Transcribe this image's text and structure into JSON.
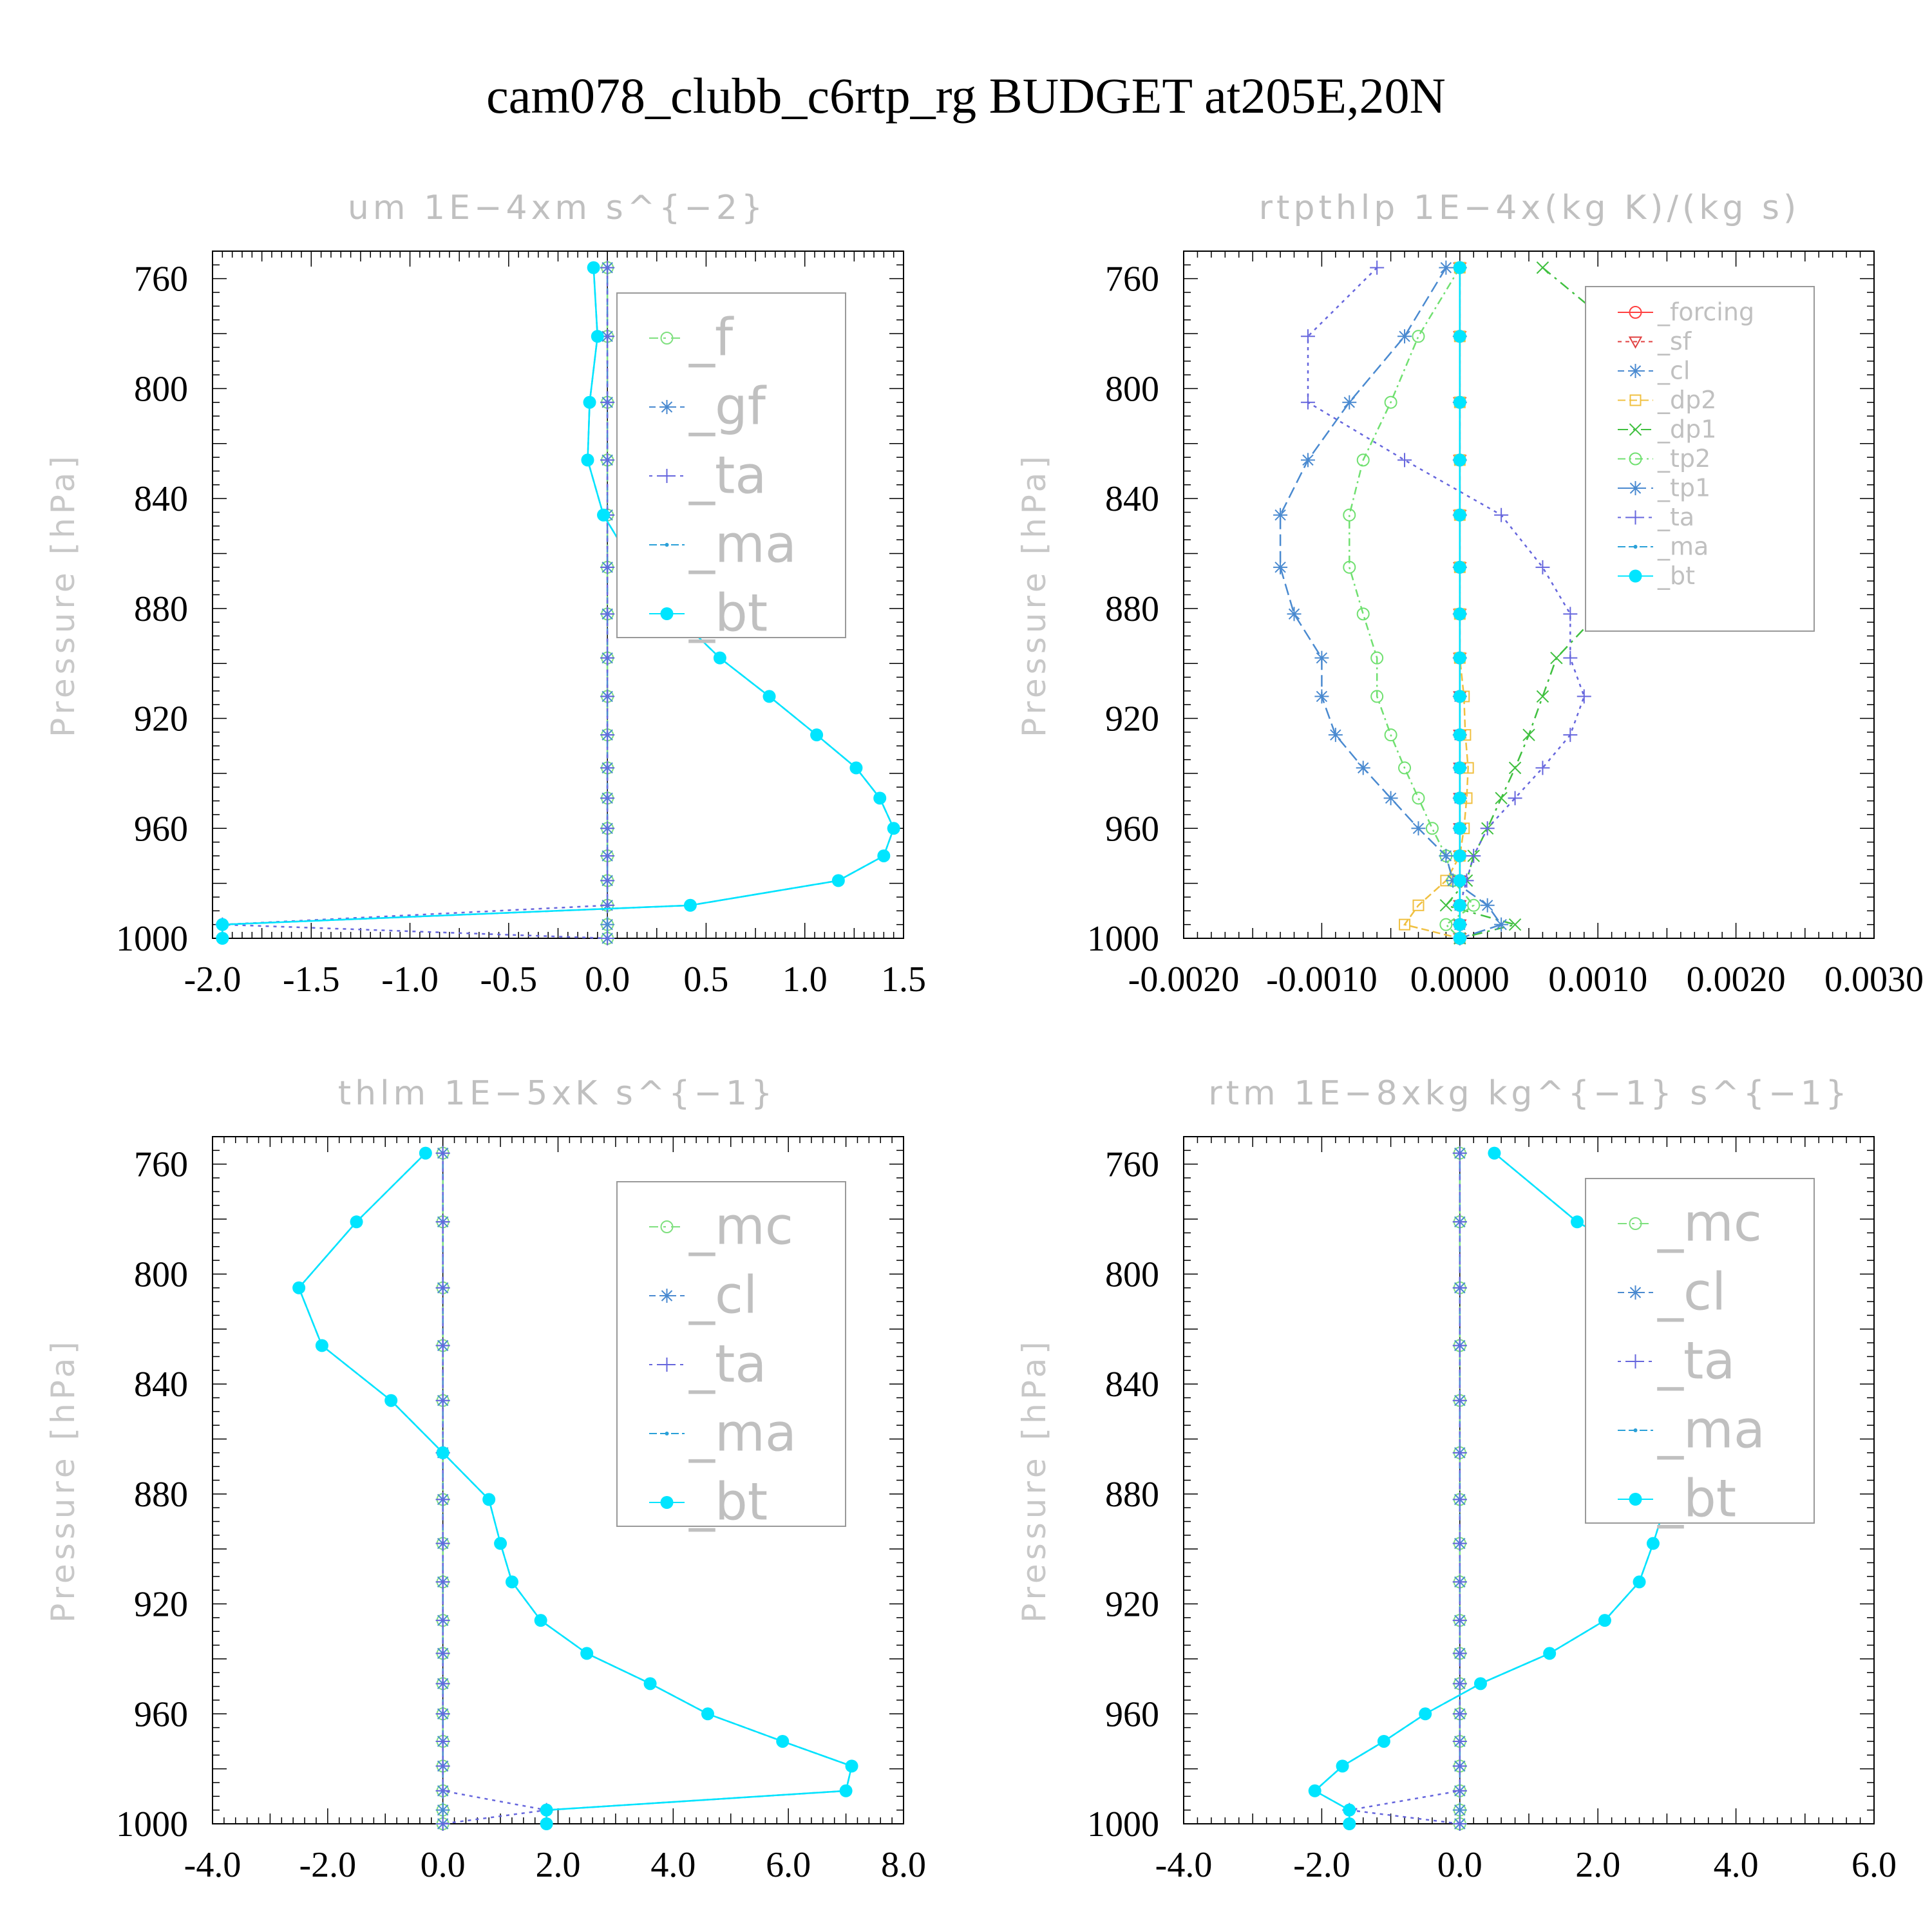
{
  "figure_title": "cam078_clubb_c6rtp_rg  BUDGET at205E,20N",
  "colors": {
    "_f": "#7fe07f",
    "_gf": "#4a8ad0",
    "_ta": "#6666dd",
    "_ma": "#2aa0d8",
    "_bt": "#00e5ff",
    "_mc": "#7fe07f",
    "_cl": "#4a8ad0",
    "_forcing": "#ff4040",
    "_sf": "#e04040",
    "_dp2": "#f0c040",
    "_dp1": "#40c040",
    "_tp2": "#70e070",
    "_tp1": "#4a8ad0"
  },
  "chart_data": [
    {
      "type": "line",
      "title": "um   1E−4xm s^{−2}",
      "ylabel": "Pressure [hPa]",
      "ylim": [
        1000,
        750
      ],
      "xlim": [
        -2.0,
        1.5
      ],
      "xticks": [
        "-2.0",
        "-1.5",
        "-1.0",
        "-0.5",
        "0.0",
        "0.5",
        "1.0",
        "1.5"
      ],
      "yticks": [
        "760",
        "800",
        "840",
        "880",
        "920",
        "960",
        "1000"
      ],
      "legend_position": "top-right",
      "pressure": [
        756,
        781,
        805,
        826,
        846,
        865,
        882,
        898,
        912,
        926,
        938,
        949,
        960,
        970,
        979,
        988,
        995,
        1000
      ],
      "series": [
        {
          "name": "_f",
          "values": [
            0,
            0,
            0,
            0,
            0,
            0,
            0,
            0,
            0,
            0,
            0,
            0,
            0,
            0,
            0,
            0,
            0,
            0
          ]
        },
        {
          "name": "_gf",
          "values": [
            0,
            0,
            0,
            0,
            0,
            0,
            0,
            0,
            0,
            0,
            0,
            0,
            0,
            0,
            0,
            0,
            0,
            0
          ]
        },
        {
          "name": "_ta",
          "values": [
            0,
            0,
            0,
            0,
            0,
            0,
            0,
            0,
            0,
            0,
            0,
            0,
            0,
            0,
            0,
            0,
            -1.95,
            0
          ]
        },
        {
          "name": "_ma",
          "values": [
            -0.07,
            -0.05,
            -0.09,
            -0.1,
            -0.02,
            0.14,
            0.34,
            0.57,
            0.82,
            1.06,
            1.26,
            1.38,
            1.45,
            1.4,
            1.17,
            0.42,
            -1.95,
            -1.95
          ]
        },
        {
          "name": "_bt",
          "values": [
            -0.07,
            -0.05,
            -0.09,
            -0.1,
            -0.02,
            0.14,
            0.34,
            0.57,
            0.82,
            1.06,
            1.26,
            1.38,
            1.45,
            1.4,
            1.17,
            0.42,
            -1.95,
            -1.95
          ]
        }
      ]
    },
    {
      "type": "line",
      "title": "rtpthlp   1E−4x(kg K)/(kg s)",
      "ylabel": "Pressure [hPa]",
      "ylim": [
        1000,
        750
      ],
      "xlim": [
        -0.002,
        0.003
      ],
      "xticks": [
        "-0.0020",
        "-0.0010",
        "0.0000",
        "0.0010",
        "0.0020",
        "0.0030"
      ],
      "yticks": [
        "760",
        "800",
        "840",
        "880",
        "920",
        "960",
        "1000"
      ],
      "legend_position": "top-right",
      "pressure": [
        756,
        781,
        805,
        826,
        846,
        865,
        882,
        898,
        912,
        926,
        938,
        949,
        960,
        970,
        979,
        988,
        995,
        1000
      ],
      "series": [
        {
          "name": "_forcing",
          "values": [
            0,
            0,
            0,
            0,
            0,
            0,
            0,
            0,
            0,
            0,
            0,
            0,
            0,
            0,
            0,
            0,
            0,
            0
          ]
        },
        {
          "name": "_sf",
          "values": [
            0,
            0,
            0,
            0,
            0,
            0,
            0,
            0,
            0,
            0,
            0,
            0,
            0,
            0,
            0,
            0,
            0,
            0
          ]
        },
        {
          "name": "_cl",
          "values": [
            0,
            0,
            0,
            0,
            0,
            0,
            0,
            0,
            0,
            0,
            0,
            0,
            0,
            0,
            0,
            0,
            0,
            0
          ]
        },
        {
          "name": "_dp2",
          "values": [
            0,
            0,
            0,
            0,
            0,
            0,
            0,
            0,
            3e-05,
            4e-05,
            6e-05,
            5e-05,
            3e-05,
            0,
            -0.0001,
            -0.0003,
            -0.0004,
            0
          ]
        },
        {
          "name": "_dp1",
          "values": [
            0.0006,
            0.0012,
            0.002,
            0.0022,
            0.0016,
            0.0011,
            0.001,
            0.0007,
            0.0006,
            0.0005,
            0.0004,
            0.0003,
            0.0002,
            0.0001,
            5e-05,
            -0.0001,
            0.0004,
            0
          ]
        },
        {
          "name": "_tp2",
          "values": [
            0,
            -0.0003,
            -0.0005,
            -0.0007,
            -0.0008,
            -0.0008,
            -0.0007,
            -0.0006,
            -0.0006,
            -0.0005,
            -0.0004,
            -0.0003,
            -0.0002,
            -0.0001,
            -5e-05,
            0.0001,
            -0.0001,
            0
          ]
        },
        {
          "name": "_tp1",
          "values": [
            -0.0001,
            -0.0004,
            -0.0008,
            -0.0011,
            -0.0013,
            -0.0013,
            -0.0012,
            -0.001,
            -0.001,
            -0.0009,
            -0.0007,
            -0.0005,
            -0.0003,
            -0.0001,
            -5e-05,
            0.0002,
            0.0003,
            0
          ]
        },
        {
          "name": "_ta",
          "values": [
            -0.0006,
            -0.0011,
            -0.0011,
            -0.0004,
            0.0003,
            0.0006,
            0.0008,
            0.0008,
            0.0009,
            0.0008,
            0.0006,
            0.0004,
            0.0002,
            0.0001,
            5e-05,
            0,
            0,
            0
          ]
        },
        {
          "name": "_ma",
          "values": [
            0,
            0,
            0,
            0,
            0,
            0,
            0,
            0,
            0,
            0,
            0,
            0,
            0,
            0,
            0,
            0,
            0,
            0
          ]
        },
        {
          "name": "_bt",
          "values": [
            0,
            0,
            0,
            0,
            0,
            0,
            0,
            0,
            0,
            0,
            0,
            0,
            0,
            0,
            0,
            0,
            0,
            0
          ]
        }
      ]
    },
    {
      "type": "line",
      "title": "thlm   1E−5xK s^{−1}",
      "ylabel": "Pressure [hPa]",
      "ylim": [
        1000,
        750
      ],
      "xlim": [
        -4.0,
        8.0
      ],
      "xticks": [
        "-4.0",
        "-2.0",
        "0.0",
        "2.0",
        "4.0",
        "6.0",
        "8.0"
      ],
      "yticks": [
        "760",
        "800",
        "840",
        "880",
        "920",
        "960",
        "1000"
      ],
      "legend_position": "top-right",
      "pressure": [
        756,
        781,
        805,
        826,
        846,
        865,
        882,
        898,
        912,
        926,
        938,
        949,
        960,
        970,
        979,
        988,
        995,
        1000
      ],
      "series": [
        {
          "name": "_mc",
          "values": [
            0,
            0,
            0,
            0,
            0,
            0,
            0,
            0,
            0,
            0,
            0,
            0,
            0,
            0,
            0,
            0,
            0,
            0
          ]
        },
        {
          "name": "_cl",
          "values": [
            0,
            0,
            0,
            0,
            0,
            0,
            0,
            0,
            0,
            0,
            0,
            0,
            0,
            0,
            0,
            0,
            0,
            0
          ]
        },
        {
          "name": "_ta",
          "values": [
            0,
            0,
            0,
            0,
            0,
            0,
            0,
            0,
            0,
            0,
            0,
            0,
            0,
            0,
            0,
            0,
            1.8,
            0
          ]
        },
        {
          "name": "_ma",
          "values": [
            -0.3,
            -1.5,
            -2.5,
            -2.1,
            -0.9,
            0,
            0.8,
            1.0,
            1.2,
            1.7,
            2.5,
            3.6,
            4.6,
            5.9,
            7.1,
            7.0,
            1.8,
            1.8
          ]
        },
        {
          "name": "_bt",
          "values": [
            -0.3,
            -1.5,
            -2.5,
            -2.1,
            -0.9,
            0,
            0.8,
            1.0,
            1.2,
            1.7,
            2.5,
            3.6,
            4.6,
            5.9,
            7.1,
            7.0,
            1.8,
            1.8
          ]
        }
      ]
    },
    {
      "type": "line",
      "title": "rtm   1E−8xkg kg^{−1} s^{−1}",
      "ylabel": "Pressure [hPa]",
      "ylim": [
        1000,
        750
      ],
      "xlim": [
        -4.0,
        6.0
      ],
      "xticks": [
        "-4.0",
        "-2.0",
        "0.0",
        "2.0",
        "4.0",
        "6.0"
      ],
      "yticks": [
        "760",
        "800",
        "840",
        "880",
        "920",
        "960",
        "1000"
      ],
      "legend_position": "top-right",
      "pressure": [
        756,
        781,
        805,
        826,
        846,
        865,
        882,
        898,
        912,
        926,
        938,
        949,
        960,
        970,
        979,
        988,
        995,
        1000
      ],
      "series": [
        {
          "name": "_mc",
          "values": [
            0,
            0,
            0,
            0,
            0,
            0,
            0,
            0,
            0,
            0,
            0,
            0,
            0,
            0,
            0,
            0,
            0,
            0
          ]
        },
        {
          "name": "_cl",
          "values": [
            0,
            0,
            0,
            0,
            0,
            0,
            0,
            0,
            0,
            0,
            0,
            0,
            0,
            0,
            0,
            0,
            0,
            0
          ]
        },
        {
          "name": "_ta",
          "values": [
            0,
            0,
            0,
            0,
            0,
            0,
            0,
            0,
            0,
            0,
            0,
            0,
            0,
            0,
            0,
            0,
            -1.6,
            0
          ]
        },
        {
          "name": "_ma",
          "values": [
            0.5,
            1.7,
            3.4,
            4.2,
            3.9,
            3.5,
            3.0,
            2.8,
            2.6,
            2.1,
            1.3,
            0.3,
            -0.5,
            -1.1,
            -1.7,
            -2.1,
            -1.6,
            -1.6
          ]
        },
        {
          "name": "_bt",
          "values": [
            0.5,
            1.7,
            3.4,
            4.2,
            3.9,
            3.5,
            3.0,
            2.8,
            2.6,
            2.1,
            1.3,
            0.3,
            -0.5,
            -1.1,
            -1.7,
            -2.1,
            -1.6,
            -1.6
          ]
        }
      ]
    }
  ]
}
